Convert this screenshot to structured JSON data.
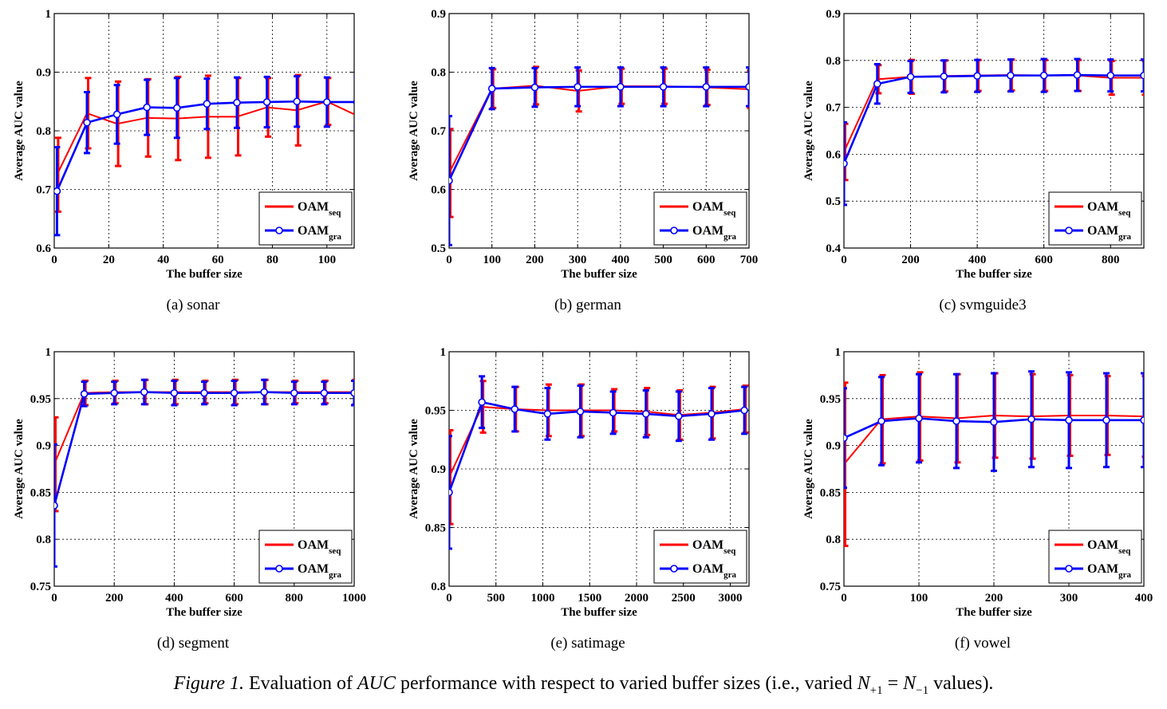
{
  "figure": {
    "caption_label": "Figure 1.",
    "caption_text": "Evaluation of AUC performance with respect to varied buffer sizes (i.e., varied N+1 = N−1 values).",
    "legend_base": "OAM",
    "colors": {
      "seq": "#ff0000",
      "gra": "#0000ff"
    }
  },
  "chart_data": [
    {
      "type": "line",
      "caption": "(a) sonar",
      "xlabel": "The buffer size",
      "ylabel": "Average AUC value",
      "xlim": [
        0,
        110
      ],
      "ylim": [
        0.6,
        1.0
      ],
      "xticks": [
        0,
        20,
        40,
        60,
        80,
        100
      ],
      "yticks": [
        0.6,
        0.7,
        0.8,
        0.9,
        1.0
      ],
      "ytick_labels": [
        "0.6",
        "0.7",
        "0.8",
        "0.9",
        "1"
      ],
      "legend": [
        "seq",
        "gra"
      ],
      "series": [
        {
          "key": "seq",
          "sub": "seq",
          "x": [
            1,
            12,
            23,
            34,
            45,
            56,
            67,
            78,
            89,
            100,
            111
          ],
          "y": [
            0.725,
            0.83,
            0.812,
            0.822,
            0.821,
            0.824,
            0.824,
            0.84,
            0.835,
            0.85,
            0.826
          ],
          "err": [
            0.063,
            0.06,
            0.072,
            0.066,
            0.071,
            0.07,
            0.066,
            0.05,
            0.06,
            0.04,
            0.066
          ]
        },
        {
          "key": "gra",
          "sub": "gra",
          "x": [
            1,
            12,
            23,
            34,
            45,
            56,
            67,
            78,
            89,
            100,
            111
          ],
          "y": [
            0.697,
            0.814,
            0.828,
            0.84,
            0.839,
            0.846,
            0.848,
            0.849,
            0.85,
            0.849,
            0.849
          ],
          "err": [
            0.075,
            0.052,
            0.05,
            0.047,
            0.051,
            0.043,
            0.043,
            0.043,
            0.043,
            0.042,
            0.042
          ]
        }
      ]
    },
    {
      "type": "line",
      "caption": "(b) german",
      "xlabel": "The buffer size",
      "ylabel": "Average AUC value",
      "xlim": [
        0,
        700
      ],
      "ylim": [
        0.5,
        0.9
      ],
      "xticks": [
        0,
        100,
        200,
        300,
        400,
        500,
        600,
        700
      ],
      "yticks": [
        0.5,
        0.6,
        0.7,
        0.8,
        0.9
      ],
      "ytick_labels": [
        "0.5",
        "0.6",
        "0.7",
        "0.8",
        "0.9"
      ],
      "legend": [
        "seq",
        "gra"
      ],
      "series": [
        {
          "key": "seq",
          "sub": "seq",
          "x": [
            0,
            100,
            200,
            300,
            400,
            500,
            600,
            700
          ],
          "y": [
            0.628,
            0.772,
            0.777,
            0.768,
            0.776,
            0.776,
            0.774,
            0.771
          ],
          "err": [
            0.075,
            0.033,
            0.032,
            0.035,
            0.03,
            0.03,
            0.03,
            0.032
          ]
        },
        {
          "key": "gra",
          "sub": "gra",
          "x": [
            0,
            100,
            200,
            300,
            400,
            500,
            600,
            700
          ],
          "y": [
            0.615,
            0.772,
            0.774,
            0.775,
            0.775,
            0.775,
            0.775,
            0.775
          ],
          "err": [
            0.11,
            0.035,
            0.033,
            0.033,
            0.033,
            0.033,
            0.033,
            0.033
          ]
        }
      ]
    },
    {
      "type": "line",
      "caption": "(c) svmguide3",
      "xlabel": "The buffer size",
      "ylabel": "Average AUC value",
      "xlim": [
        0,
        900
      ],
      "ylim": [
        0.4,
        0.9
      ],
      "xticks": [
        0,
        200,
        400,
        600,
        800
      ],
      "yticks": [
        0.4,
        0.5,
        0.6,
        0.7,
        0.8,
        0.9
      ],
      "ytick_labels": [
        "0.4",
        "0.5",
        "0.6",
        "0.7",
        "0.8",
        "0.9"
      ],
      "legend": [
        "seq",
        "gra"
      ],
      "series": [
        {
          "key": "seq",
          "sub": "seq",
          "x": [
            0,
            100,
            200,
            300,
            400,
            500,
            600,
            700,
            800,
            900
          ],
          "y": [
            0.605,
            0.76,
            0.765,
            0.767,
            0.768,
            0.769,
            0.768,
            0.768,
            0.763,
            0.763
          ],
          "err": [
            0.06,
            0.03,
            0.036,
            0.033,
            0.033,
            0.033,
            0.033,
            0.033,
            0.036,
            0.036
          ]
        },
        {
          "key": "gra",
          "sub": "gra",
          "x": [
            0,
            100,
            200,
            300,
            400,
            500,
            600,
            700,
            800,
            900
          ],
          "y": [
            0.58,
            0.75,
            0.765,
            0.766,
            0.767,
            0.768,
            0.768,
            0.769,
            0.768,
            0.768
          ],
          "err": [
            0.088,
            0.042,
            0.034,
            0.034,
            0.034,
            0.034,
            0.035,
            0.034,
            0.034,
            0.034
          ]
        }
      ]
    },
    {
      "type": "line",
      "caption": "(d) segment",
      "xlabel": "The buffer size",
      "ylabel": "Average AUC value",
      "xlim": [
        0,
        1000
      ],
      "ylim": [
        0.75,
        1.0
      ],
      "xticks": [
        0,
        200,
        400,
        600,
        800,
        1000
      ],
      "yticks": [
        0.75,
        0.8,
        0.85,
        0.9,
        0.95,
        1.0
      ],
      "ytick_labels": [
        "0.75",
        "0.8",
        "0.85",
        "0.9",
        "0.95",
        "1"
      ],
      "legend": [
        "seq",
        "gra"
      ],
      "series": [
        {
          "key": "seq",
          "sub": "seq",
          "x": [
            0,
            100,
            200,
            300,
            400,
            500,
            600,
            700,
            800,
            900,
            1000
          ],
          "y": [
            0.88,
            0.956,
            0.957,
            0.957,
            0.957,
            0.957,
            0.957,
            0.957,
            0.957,
            0.957,
            0.957
          ],
          "err": [
            0.05,
            0.013,
            0.012,
            0.013,
            0.013,
            0.012,
            0.013,
            0.013,
            0.012,
            0.012,
            0.013
          ]
        },
        {
          "key": "gra",
          "sub": "gra",
          "x": [
            0,
            100,
            200,
            300,
            400,
            500,
            600,
            700,
            800,
            900,
            1000
          ],
          "y": [
            0.836,
            0.955,
            0.956,
            0.957,
            0.956,
            0.956,
            0.956,
            0.957,
            0.956,
            0.956,
            0.956
          ],
          "err": [
            0.065,
            0.013,
            0.012,
            0.013,
            0.013,
            0.012,
            0.013,
            0.013,
            0.012,
            0.012,
            0.013
          ]
        }
      ]
    },
    {
      "type": "line",
      "caption": "(e) satimage",
      "xlabel": "The buffer size",
      "ylabel": "Average AUC value",
      "xlim": [
        0,
        3200
      ],
      "ylim": [
        0.8,
        1.0
      ],
      "xticks": [
        0,
        500,
        1000,
        1500,
        2000,
        2500,
        3000
      ],
      "yticks": [
        0.8,
        0.85,
        0.9,
        0.95,
        1.0
      ],
      "ytick_labels": [
        "0.8",
        "0.85",
        "0.9",
        "0.95",
        "1"
      ],
      "legend": [
        "seq",
        "gra"
      ],
      "series": [
        {
          "key": "seq",
          "sub": "seq",
          "x": [
            0,
            350,
            700,
            1050,
            1400,
            1750,
            2100,
            2450,
            2800,
            3150
          ],
          "y": [
            0.893,
            0.953,
            0.951,
            0.95,
            0.95,
            0.95,
            0.949,
            0.946,
            0.948,
            0.951
          ],
          "err": [
            0.04,
            0.022,
            0.019,
            0.022,
            0.022,
            0.018,
            0.02,
            0.021,
            0.022,
            0.02
          ]
        },
        {
          "key": "gra",
          "sub": "gra",
          "x": [
            0,
            350,
            700,
            1050,
            1400,
            1750,
            2100,
            2450,
            2800,
            3150
          ],
          "y": [
            0.88,
            0.957,
            0.951,
            0.947,
            0.949,
            0.948,
            0.947,
            0.945,
            0.947,
            0.95
          ],
          "err": [
            0.048,
            0.022,
            0.019,
            0.022,
            0.022,
            0.018,
            0.02,
            0.021,
            0.022,
            0.02
          ]
        }
      ]
    },
    {
      "type": "line",
      "caption": "(f) vowel",
      "xlabel": "The buffer size",
      "ylabel": "Average AUC value",
      "xlim": [
        0,
        400
      ],
      "ylim": [
        0.75,
        1.0
      ],
      "xticks": [
        0,
        100,
        200,
        300,
        400
      ],
      "yticks": [
        0.75,
        0.8,
        0.85,
        0.9,
        0.95,
        1.0
      ],
      "ytick_labels": [
        "0.75",
        "0.8",
        "0.85",
        "0.9",
        "0.95",
        "1"
      ],
      "legend": [
        "seq",
        "gra"
      ],
      "series": [
        {
          "key": "seq",
          "sub": "seq",
          "x": [
            0,
            50,
            100,
            150,
            200,
            250,
            300,
            350,
            400
          ],
          "y": [
            0.88,
            0.928,
            0.931,
            0.929,
            0.932,
            0.931,
            0.932,
            0.932,
            0.931
          ],
          "err": [
            0.087,
            0.047,
            0.047,
            0.047,
            0.045,
            0.045,
            0.043,
            0.042,
            0.043
          ]
        },
        {
          "key": "gra",
          "sub": "gra",
          "x": [
            0,
            50,
            100,
            150,
            200,
            250,
            300,
            350,
            400
          ],
          "y": [
            0.908,
            0.926,
            0.929,
            0.926,
            0.925,
            0.928,
            0.927,
            0.927,
            0.927
          ],
          "err": [
            0.053,
            0.047,
            0.047,
            0.05,
            0.052,
            0.051,
            0.051,
            0.05,
            0.05
          ]
        }
      ]
    }
  ]
}
